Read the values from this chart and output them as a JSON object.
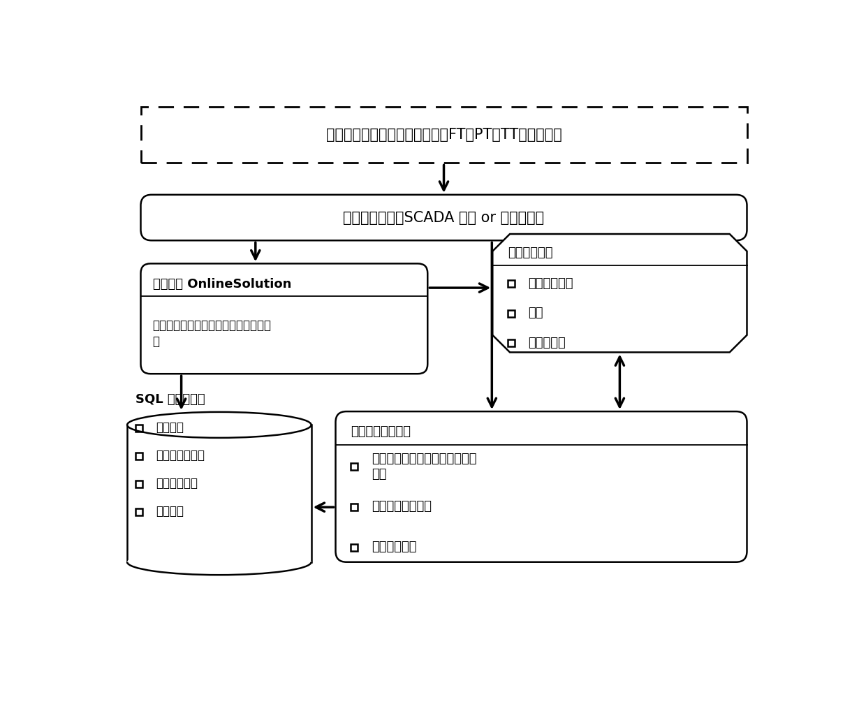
{
  "bg_color": "#ffffff",
  "box1_text": "管道系统现场设备及运行数据（FT，PT，TT，状态等）",
  "box2_text": "实时运行数据：SCADA 系统 or 实时数据库",
  "box3_title": "数据接口 OnlineSolution",
  "box3_body": "实时数据效验、组织、滤波、管理和发\n布",
  "box4_title": "在线仿真模型",
  "box4_items": [
    "系统结构工艺",
    "标定",
    "模型自适应"
  ],
  "box5_title": "管道系统在线仿真",
  "box5_items": [
    "管道沿线实时压力、流量、温度\n分布",
    "管道运行状态快照",
    "压力异常报警"
  ],
  "box6_title": "SQL 历史数据库",
  "box6_items": [
    "实时数据",
    "报警、操作记录",
    "详细流动信息",
    "压力分布"
  ]
}
